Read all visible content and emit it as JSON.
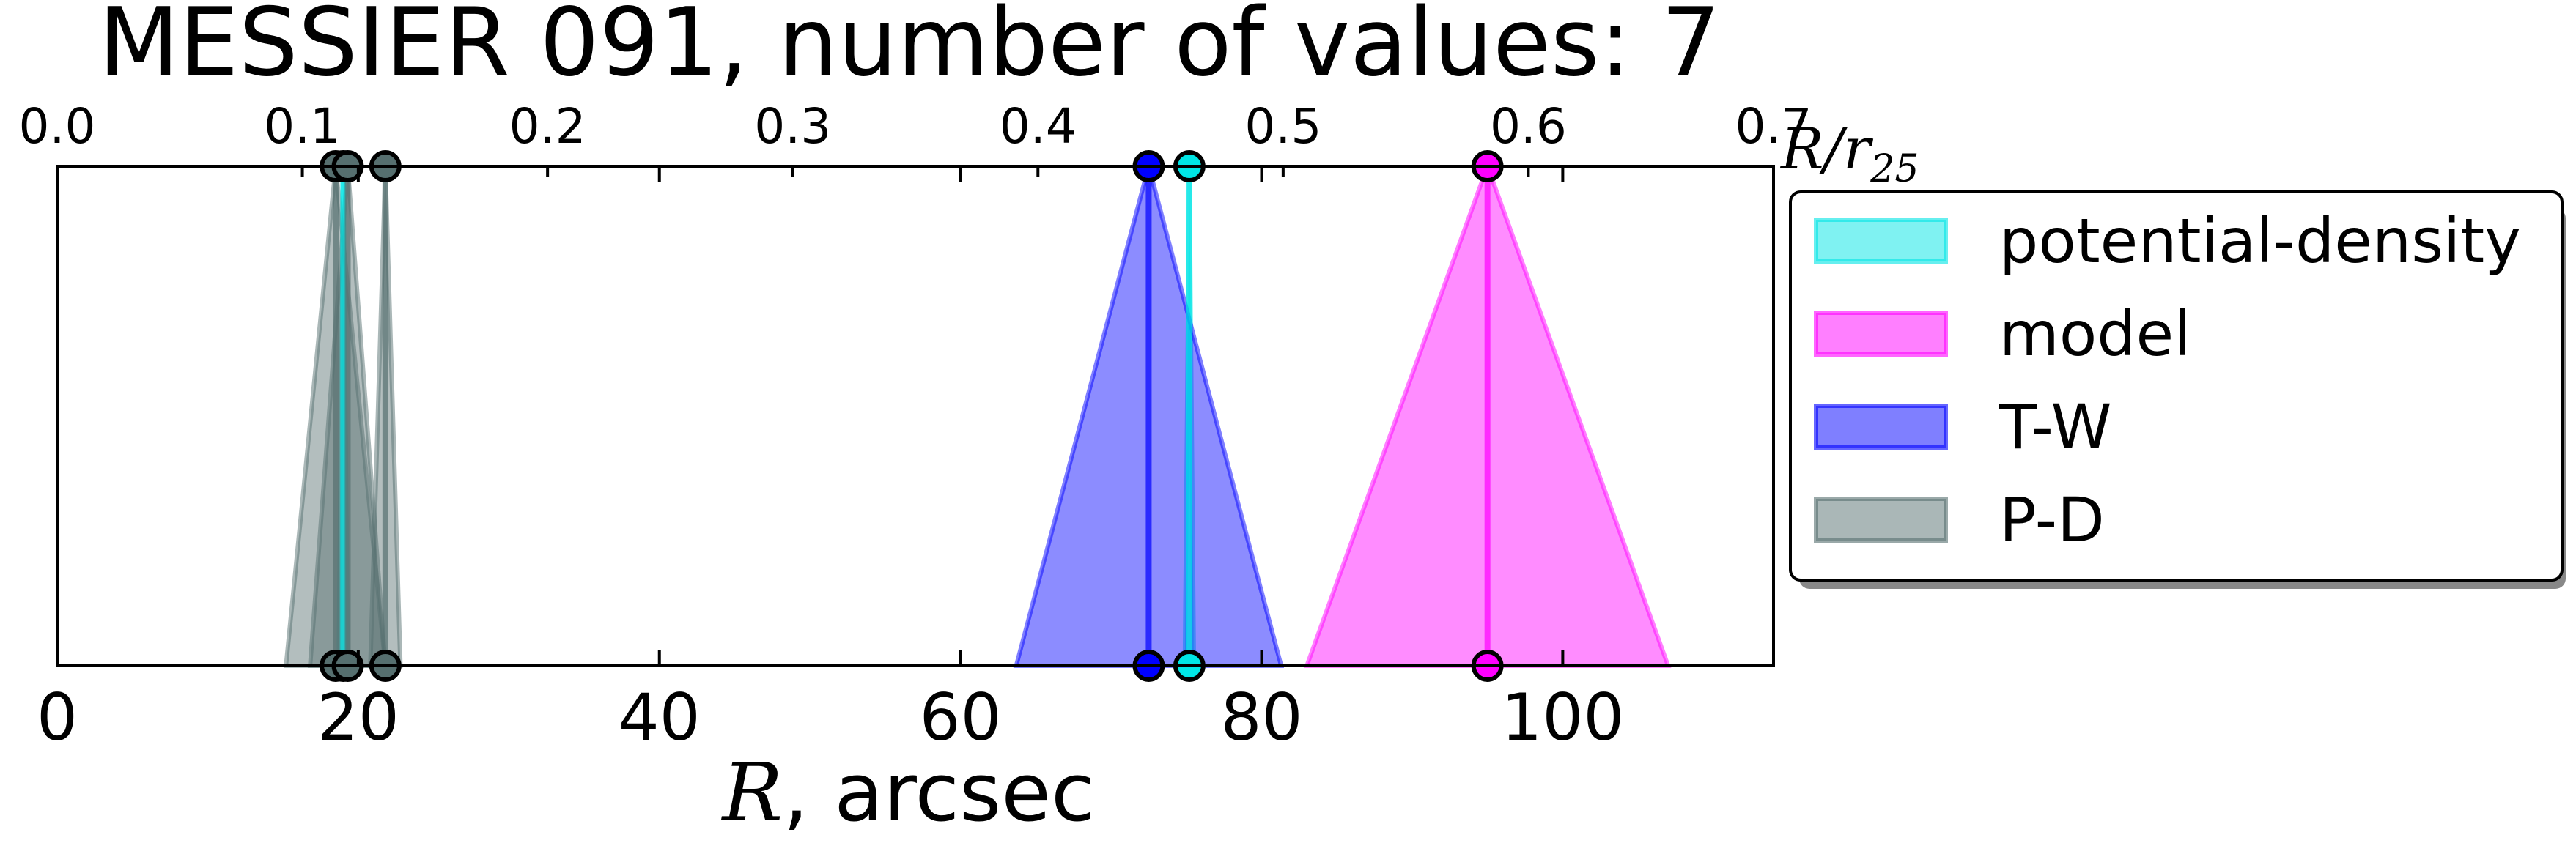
{
  "chart_data": {
    "type": "area",
    "title": "MESSIER 091, number of values: 7",
    "xlabel_var": "R",
    "xlabel_unit": ", arcsec",
    "top_axis_label_var": "R/r",
    "top_axis_label_sub": "25",
    "xlim": [
      0,
      114
    ],
    "top_xlim": [
      0,
      0.7
    ],
    "x_ticks": [
      0,
      20,
      40,
      60,
      80,
      100
    ],
    "x_tick_labels": [
      "0",
      "20",
      "40",
      "60",
      "80",
      "100"
    ],
    "top_ticks": [
      0.0,
      0.1,
      0.2,
      0.3,
      0.4,
      0.5,
      0.6,
      0.7
    ],
    "top_tick_labels": [
      "0.0",
      "0.1",
      "0.2",
      "0.3",
      "0.4",
      "0.5",
      "0.6",
      "0.7"
    ],
    "legend_position": "right, outside plot area",
    "grid": false,
    "series": [
      {
        "name": "potential-density",
        "color": "#00e5e5",
        "values": [
          {
            "r": 19.0,
            "err": 0.3
          },
          {
            "r": 75.2,
            "err": 0.3
          }
        ]
      },
      {
        "name": "model",
        "color": "#ff00ff",
        "values": [
          {
            "r": 95.0,
            "err": 12.0
          }
        ]
      },
      {
        "name": "T-W",
        "color": "#0000ff",
        "values": [
          {
            "r": 72.5,
            "err": 8.8
          }
        ]
      },
      {
        "name": "P-D",
        "color": "#566f6f",
        "values": [
          {
            "r": 18.5,
            "err": 3.3
          },
          {
            "r": 19.3,
            "err": 2.5
          },
          {
            "r": 21.8,
            "err": 1.0
          }
        ]
      }
    ]
  }
}
